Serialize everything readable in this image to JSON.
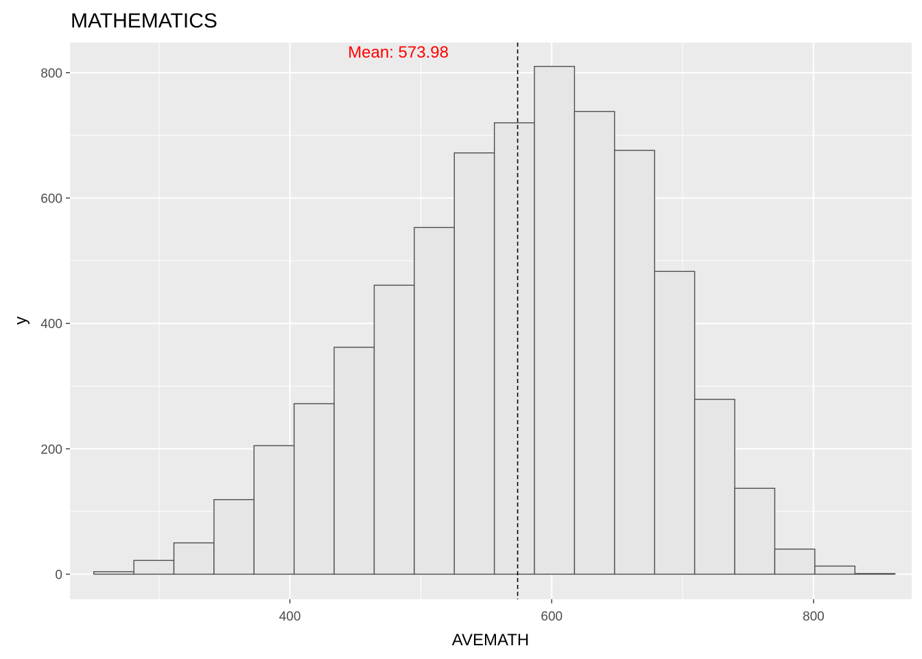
{
  "chart_data": {
    "type": "bar",
    "title": "MATHEMATICS",
    "xlabel": "AVEMATH",
    "ylabel": "y",
    "xlim": [
      232,
      875
    ],
    "ylim": [
      -40,
      848
    ],
    "xticks": [
      400,
      600,
      800
    ],
    "yticks": [
      0,
      200,
      400,
      600,
      800
    ],
    "bin_width": 30.6,
    "bins": [
      {
        "center": 265.5,
        "count": 4
      },
      {
        "center": 296.1,
        "count": 22
      },
      {
        "center": 326.7,
        "count": 50
      },
      {
        "center": 357.3,
        "count": 119
      },
      {
        "center": 387.9,
        "count": 205
      },
      {
        "center": 418.5,
        "count": 272
      },
      {
        "center": 449.1,
        "count": 362
      },
      {
        "center": 479.7,
        "count": 461
      },
      {
        "center": 510.3,
        "count": 553
      },
      {
        "center": 540.9,
        "count": 672
      },
      {
        "center": 571.5,
        "count": 720
      },
      {
        "center": 602.1,
        "count": 810
      },
      {
        "center": 632.7,
        "count": 738
      },
      {
        "center": 663.3,
        "count": 676
      },
      {
        "center": 693.9,
        "count": 483
      },
      {
        "center": 724.5,
        "count": 279
      },
      {
        "center": 755.1,
        "count": 137
      },
      {
        "center": 785.7,
        "count": 40
      },
      {
        "center": 816.3,
        "count": 13
      },
      {
        "center": 846.9,
        "count": 1
      }
    ],
    "mean_line": {
      "value": 573.98,
      "label": "Mean: 573.98",
      "label_color": "#ff0000"
    },
    "colors": {
      "panel_background": "#ebebeb",
      "grid_major": "#ffffff",
      "bar_fill": "#e6e6e6",
      "bar_stroke": "#4d4d4d",
      "tick_color": "#333333",
      "mean_line": "#000000"
    },
    "grid": true,
    "legend": "none"
  }
}
